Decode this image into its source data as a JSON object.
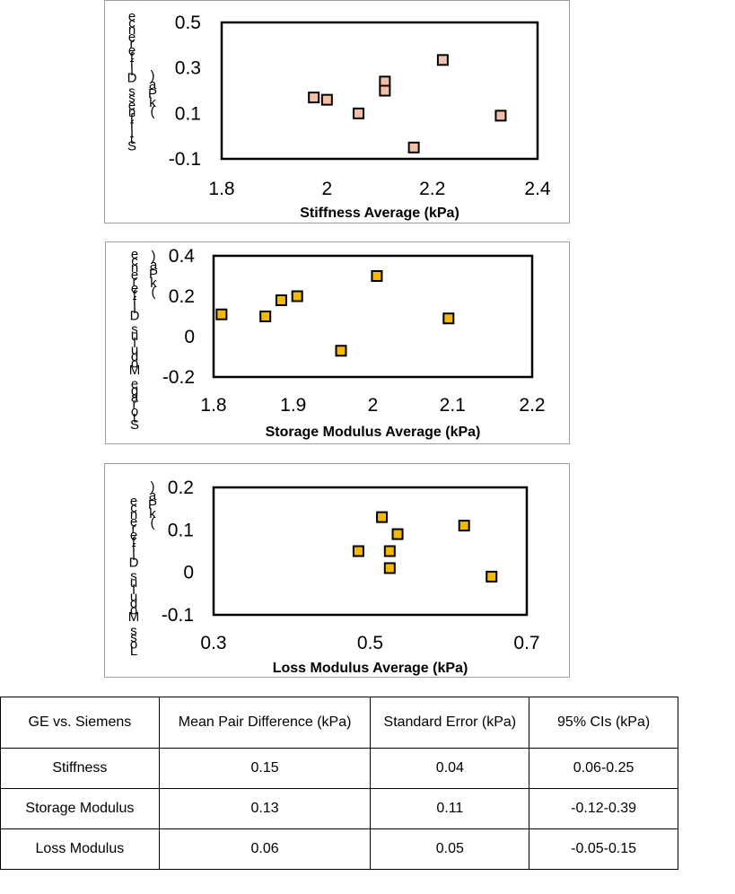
{
  "chart_data": [
    {
      "type": "scatter",
      "xlabel": "Stiffness Average (kPa)",
      "ylabel": "Stiffness Difference (kPa)",
      "xlim": [
        1.8,
        2.4
      ],
      "ylim": [
        -0.1,
        0.5
      ],
      "x_ticks": [
        "1.8",
        "2",
        "2.2",
        "2.4"
      ],
      "y_ticks": [
        "0.5",
        "0.3",
        "0.1",
        "-0.1"
      ],
      "marker_color": "#f4bfa4",
      "points": [
        {
          "x": 1.975,
          "y": 0.17
        },
        {
          "x": 2.0,
          "y": 0.16
        },
        {
          "x": 2.06,
          "y": 0.1
        },
        {
          "x": 2.11,
          "y": 0.24
        },
        {
          "x": 2.11,
          "y": 0.2
        },
        {
          "x": 2.165,
          "y": -0.05
        },
        {
          "x": 2.22,
          "y": 0.335
        },
        {
          "x": 2.33,
          "y": 0.09
        }
      ]
    },
    {
      "type": "scatter",
      "xlabel": "Storage Modulus Average (kPa)",
      "ylabel": "Storage Modulus Difference (kPa)",
      "xlim": [
        1.8,
        2.2
      ],
      "ylim": [
        -0.2,
        0.4
      ],
      "x_ticks": [
        "1.8",
        "1.9",
        "2",
        "2.1",
        "2.2"
      ],
      "y_ticks": [
        "0.4",
        "0.2",
        "0",
        "-0.2"
      ],
      "marker_color": "#f5b800",
      "points": [
        {
          "x": 1.81,
          "y": 0.11
        },
        {
          "x": 1.865,
          "y": 0.1
        },
        {
          "x": 1.885,
          "y": 0.18
        },
        {
          "x": 1.905,
          "y": 0.2
        },
        {
          "x": 1.96,
          "y": -0.07
        },
        {
          "x": 2.005,
          "y": 0.3
        },
        {
          "x": 2.095,
          "y": 0.09
        }
      ]
    },
    {
      "type": "scatter",
      "xlabel": "Loss Modulus Average (kPa)",
      "ylabel": "Loss Modulus Difference (kPa)",
      "xlim": [
        0.3,
        0.7
      ],
      "ylim": [
        -0.1,
        0.2
      ],
      "x_ticks": [
        "0.3",
        "0.5",
        "0.7"
      ],
      "y_ticks": [
        "0.2",
        "0.1",
        "0",
        "-0.1"
      ],
      "marker_color": "#f5b800",
      "points": [
        {
          "x": 0.485,
          "y": 0.05
        },
        {
          "x": 0.515,
          "y": 0.13
        },
        {
          "x": 0.525,
          "y": 0.05
        },
        {
          "x": 0.525,
          "y": 0.01
        },
        {
          "x": 0.535,
          "y": 0.09
        },
        {
          "x": 0.62,
          "y": 0.11
        },
        {
          "x": 0.655,
          "y": -0.01
        }
      ]
    },
    {
      "type": "table",
      "headers": [
        "GE vs. Siemens",
        "Mean Pair Difference (kPa)",
        "Standard Error (kPa)",
        "95% CIs (kPa)"
      ],
      "rows": [
        [
          "Stiffness",
          "0.15",
          "0.04",
          "0.06-0.25"
        ],
        [
          "Storage Modulus",
          "0.13",
          "0.11",
          "-0.12-0.39"
        ],
        [
          "Loss Modulus",
          "0.06",
          "0.05",
          "-0.05-0.15"
        ]
      ]
    }
  ]
}
